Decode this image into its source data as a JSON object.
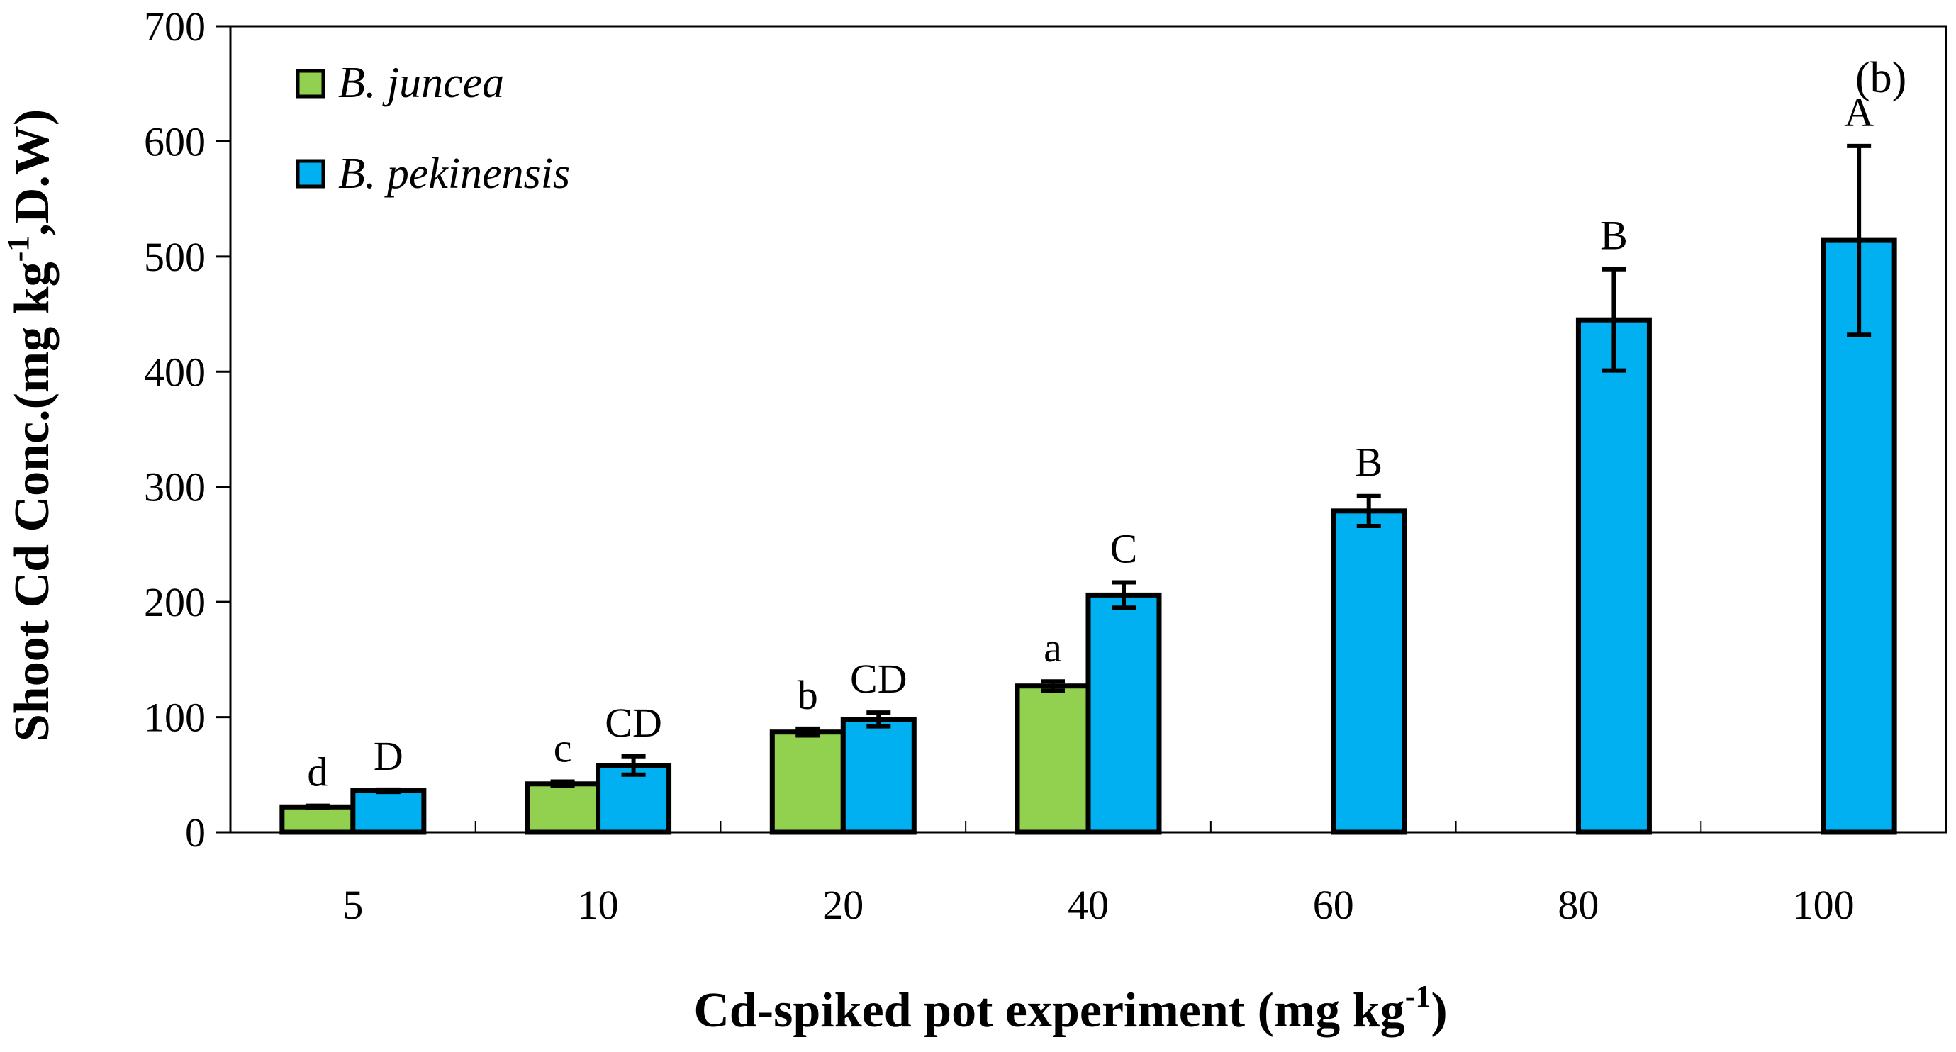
{
  "chart_data": {
    "type": "bar",
    "panel_label": "(b)",
    "categories": [
      "5",
      "10",
      "20",
      "40",
      "60",
      "80",
      "100"
    ],
    "series": [
      {
        "name": "B. juncea",
        "color": "#92d050",
        "values": [
          22,
          42,
          87,
          127,
          null,
          null,
          null
        ],
        "errors": [
          1,
          2,
          3,
          4,
          null,
          null,
          null
        ],
        "labels": [
          "d",
          "c",
          "b",
          "a",
          "",
          "",
          ""
        ]
      },
      {
        "name": "B. pekinensis",
        "color": "#00b0f0",
        "values": [
          36,
          58,
          98,
          206,
          279,
          445,
          514
        ],
        "errors": [
          1,
          8,
          6,
          11,
          13,
          44,
          82
        ],
        "labels": [
          "D",
          "CD",
          "CD",
          "C",
          "B",
          "B",
          "A"
        ]
      }
    ],
    "xlabel": "Cd-spiked pot experiment (mg kg",
    "xlabel_sup": "-1",
    "xlabel_end": ")",
    "ylabel": "Shoot Cd Conc.(mg kg",
    "ylabel_sup": "-1",
    "ylabel_end": ",D.W)",
    "ylim": [
      0,
      700
    ],
    "yticks": [
      0,
      100,
      200,
      300,
      400,
      500,
      600,
      700
    ],
    "grid": false,
    "legend_position": "top-left"
  }
}
